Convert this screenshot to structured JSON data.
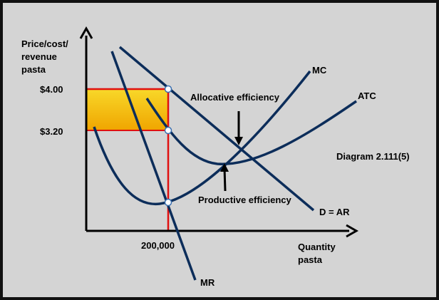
{
  "axes": {
    "y_label": [
      "Price/cost/",
      "revenue",
      "pasta"
    ],
    "x_label": [
      "Quantity",
      "pasta"
    ]
  },
  "ticks": {
    "price_high": "$4.00",
    "price_low": "$3.20",
    "quantity": "200,000"
  },
  "curves": {
    "mc": "MC",
    "atc": "ATC",
    "demand": "D = AR",
    "mr": "MR"
  },
  "annotations": {
    "allocative": "Allocative efficiency",
    "productive": "Productive efficiency",
    "diagram_id": "Diagram 2.111(5)"
  },
  "colors": {
    "background": "#d4d4d4",
    "border": "#111111",
    "curve": "#0c2d5a",
    "highlight_line": "#e01010",
    "rect_top": "#f5d21a",
    "rect_bottom": "#f0a500"
  }
}
